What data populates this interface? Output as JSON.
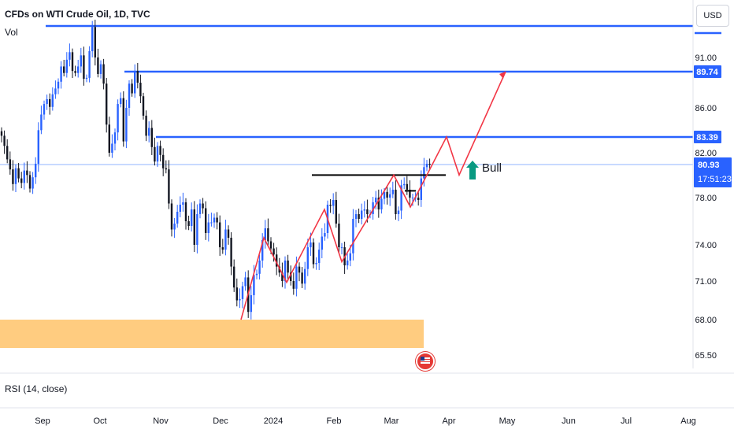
{
  "header": {
    "title": "CFDs on WTI Crude Oil, 1D, TVC",
    "volume_label": "Vol",
    "currency_button": "USD",
    "rsi_label": "RSI (14, close)"
  },
  "colors": {
    "up": "#2962ff",
    "down": "#131722",
    "level_line": "#2962ff",
    "projection": "#f23645",
    "neckline": "#000000",
    "demand_zone": "#ffcc80",
    "bull_arrow": "#089981",
    "price_tag_bg": "#2962ff",
    "axis_text": "#131722"
  },
  "chart_data": {
    "type": "candlestick",
    "x_ticks": [
      "Sep",
      "Oct",
      "Nov",
      "Dec",
      "2024",
      "Feb",
      "Mar",
      "Apr",
      "May",
      "Jun",
      "Jul",
      "Aug"
    ],
    "y_ticks": [
      91.0,
      86.0,
      82.0,
      78.0,
      74.0,
      71.0,
      68.0,
      65.5
    ],
    "price_labels": {
      "level_high": "89.74",
      "level_mid": "83.39",
      "current_price": "80.93",
      "countdown": "17:51:23"
    },
    "horizontal_levels": [
      {
        "price": 94.0,
        "from": "Sep",
        "extends_to_axis": true
      },
      {
        "price": 89.74,
        "from": "Oct",
        "extends_to_axis": true
      },
      {
        "price": 83.39,
        "from": "Nov",
        "extends_to_axis": true
      }
    ],
    "neckline": {
      "price": 80.0,
      "from": "late Jan",
      "to": "mid Mar"
    },
    "demand_zone": {
      "low": 66.0,
      "high": 68.0,
      "from": "Aug",
      "to": "Mar"
    },
    "annotation": {
      "text": "Bull",
      "arrow": "up"
    },
    "price_path_daily_closes": [
      83.5,
      82.6,
      81.4,
      80.5,
      79.2,
      80.6,
      79.7,
      79.3,
      80.4,
      80.0,
      78.8,
      79.8,
      81.0,
      84.0,
      85.4,
      86.4,
      86.9,
      86.1,
      87.4,
      88.0,
      88.7,
      90.2,
      89.6,
      90.8,
      91.5,
      89.8,
      89.6,
      90.2,
      91.2,
      89.0,
      89.1,
      91.6,
      93.9,
      91.0,
      89.5,
      90.4,
      88.5,
      84.5,
      82.0,
      82.8,
      83.8,
      86.4,
      87.0,
      83.0,
      86.0,
      88.5,
      87.5,
      89.8,
      88.6,
      87.2,
      85.3,
      83.5,
      84.2,
      82.5,
      81.2,
      82.6,
      81.8,
      80.6,
      80.5,
      77.5,
      75.3,
      75.8,
      76.8,
      77.4,
      77.6,
      76.0,
      75.6,
      77.0,
      74.0,
      76.6,
      77.5,
      77.1,
      75.0,
      75.9,
      75.9,
      76.3,
      75.9,
      73.8,
      73.6,
      75.3,
      74.6,
      72.2,
      70.5,
      69.5,
      69.6,
      70.6,
      71.3,
      68.6,
      69.9,
      71.5,
      71.6,
      72.7,
      74.4,
      75.4,
      74.3,
      73.7,
      73.2,
      72.2,
      71.7,
      71.0,
      72.7,
      71.7,
      71.0,
      70.4,
      72.2,
      71.7,
      70.8,
      72.0,
      73.8,
      74.2,
      72.4,
      72.5,
      73.6,
      74.7,
      75.0,
      77.4,
      77.3,
      77.8,
      75.8,
      73.8,
      73.8,
      72.3,
      72.7,
      73.3,
      76.2,
      76.6,
      76.2,
      76.9,
      77.0,
      76.6,
      76.6,
      77.6,
      78.0,
      77.0,
      77.9,
      78.5,
      78.0,
      78.3,
      78.7,
      76.6,
      76.9,
      79.1,
      79.2,
      78.7,
      78.0,
      78.0,
      78.0,
      77.8,
      79.7,
      80.7,
      81.0,
      80.9
    ]
  }
}
